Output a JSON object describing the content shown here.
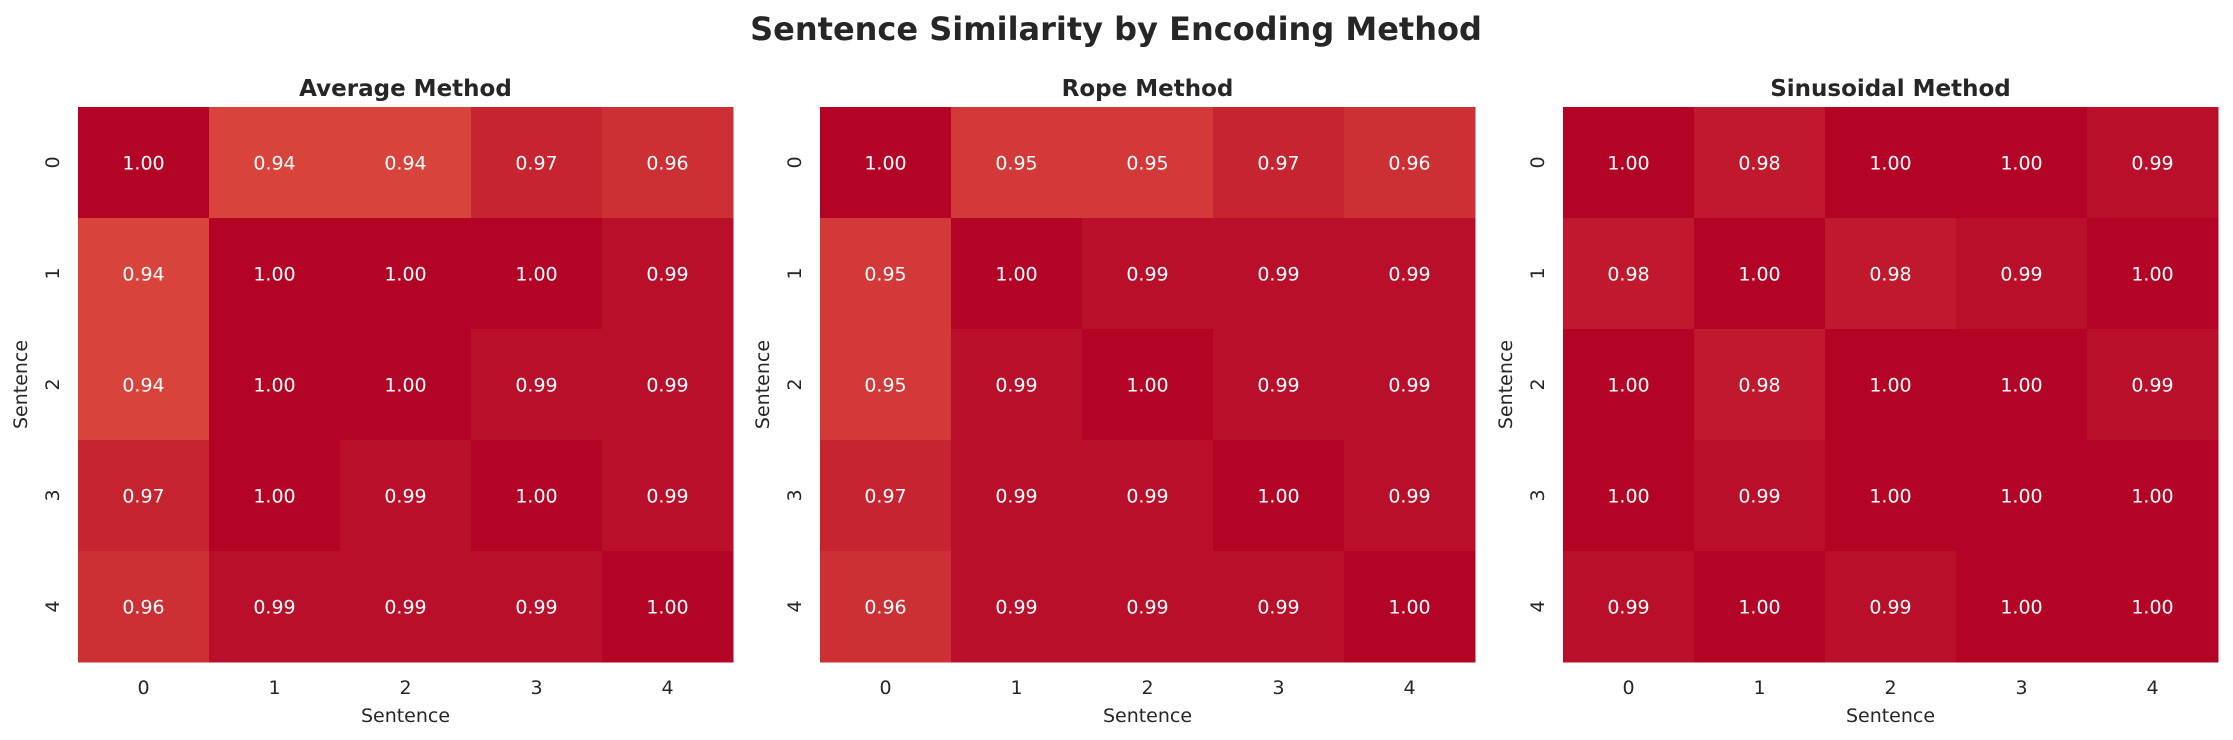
{
  "figure": {
    "title": "Sentence Similarity by Encoding Method"
  },
  "colors": {
    "background": "#ffffff",
    "text": "#262626",
    "cell_text": "#ffffff",
    "scale_low": "#d8443b",
    "scale_high": "#b40426"
  },
  "chart_data": [
    {
      "type": "heatmap",
      "title": "Average Method",
      "xlabel": "Sentence",
      "ylabel": "Sentence",
      "x_ticks": [
        "0",
        "1",
        "2",
        "3",
        "4"
      ],
      "y_ticks": [
        "0",
        "1",
        "2",
        "3",
        "4"
      ],
      "color_range": [
        0.94,
        1.0
      ],
      "values": [
        [
          1.0,
          0.94,
          0.94,
          0.97,
          0.96
        ],
        [
          0.94,
          1.0,
          1.0,
          1.0,
          0.99
        ],
        [
          0.94,
          1.0,
          1.0,
          0.99,
          0.99
        ],
        [
          0.97,
          1.0,
          0.99,
          1.0,
          0.99
        ],
        [
          0.96,
          0.99,
          0.99,
          0.99,
          1.0
        ]
      ]
    },
    {
      "type": "heatmap",
      "title": "Rope Method",
      "xlabel": "Sentence",
      "ylabel": "Sentence",
      "x_ticks": [
        "0",
        "1",
        "2",
        "3",
        "4"
      ],
      "y_ticks": [
        "0",
        "1",
        "2",
        "3",
        "4"
      ],
      "color_range": [
        0.94,
        1.0
      ],
      "values": [
        [
          1.0,
          0.95,
          0.95,
          0.97,
          0.96
        ],
        [
          0.95,
          1.0,
          0.99,
          0.99,
          0.99
        ],
        [
          0.95,
          0.99,
          1.0,
          0.99,
          0.99
        ],
        [
          0.97,
          0.99,
          0.99,
          1.0,
          0.99
        ],
        [
          0.96,
          0.99,
          0.99,
          0.99,
          1.0
        ]
      ]
    },
    {
      "type": "heatmap",
      "title": "Sinusoidal Method",
      "xlabel": "Sentence",
      "ylabel": "Sentence",
      "x_ticks": [
        "0",
        "1",
        "2",
        "3",
        "4"
      ],
      "y_ticks": [
        "0",
        "1",
        "2",
        "3",
        "4"
      ],
      "color_range": [
        0.94,
        1.0
      ],
      "values": [
        [
          1.0,
          0.98,
          1.0,
          1.0,
          0.99
        ],
        [
          0.98,
          1.0,
          0.98,
          0.99,
          1.0
        ],
        [
          1.0,
          0.98,
          1.0,
          1.0,
          0.99
        ],
        [
          1.0,
          0.99,
          1.0,
          1.0,
          1.0
        ],
        [
          0.99,
          1.0,
          0.99,
          1.0,
          1.0
        ]
      ]
    }
  ]
}
